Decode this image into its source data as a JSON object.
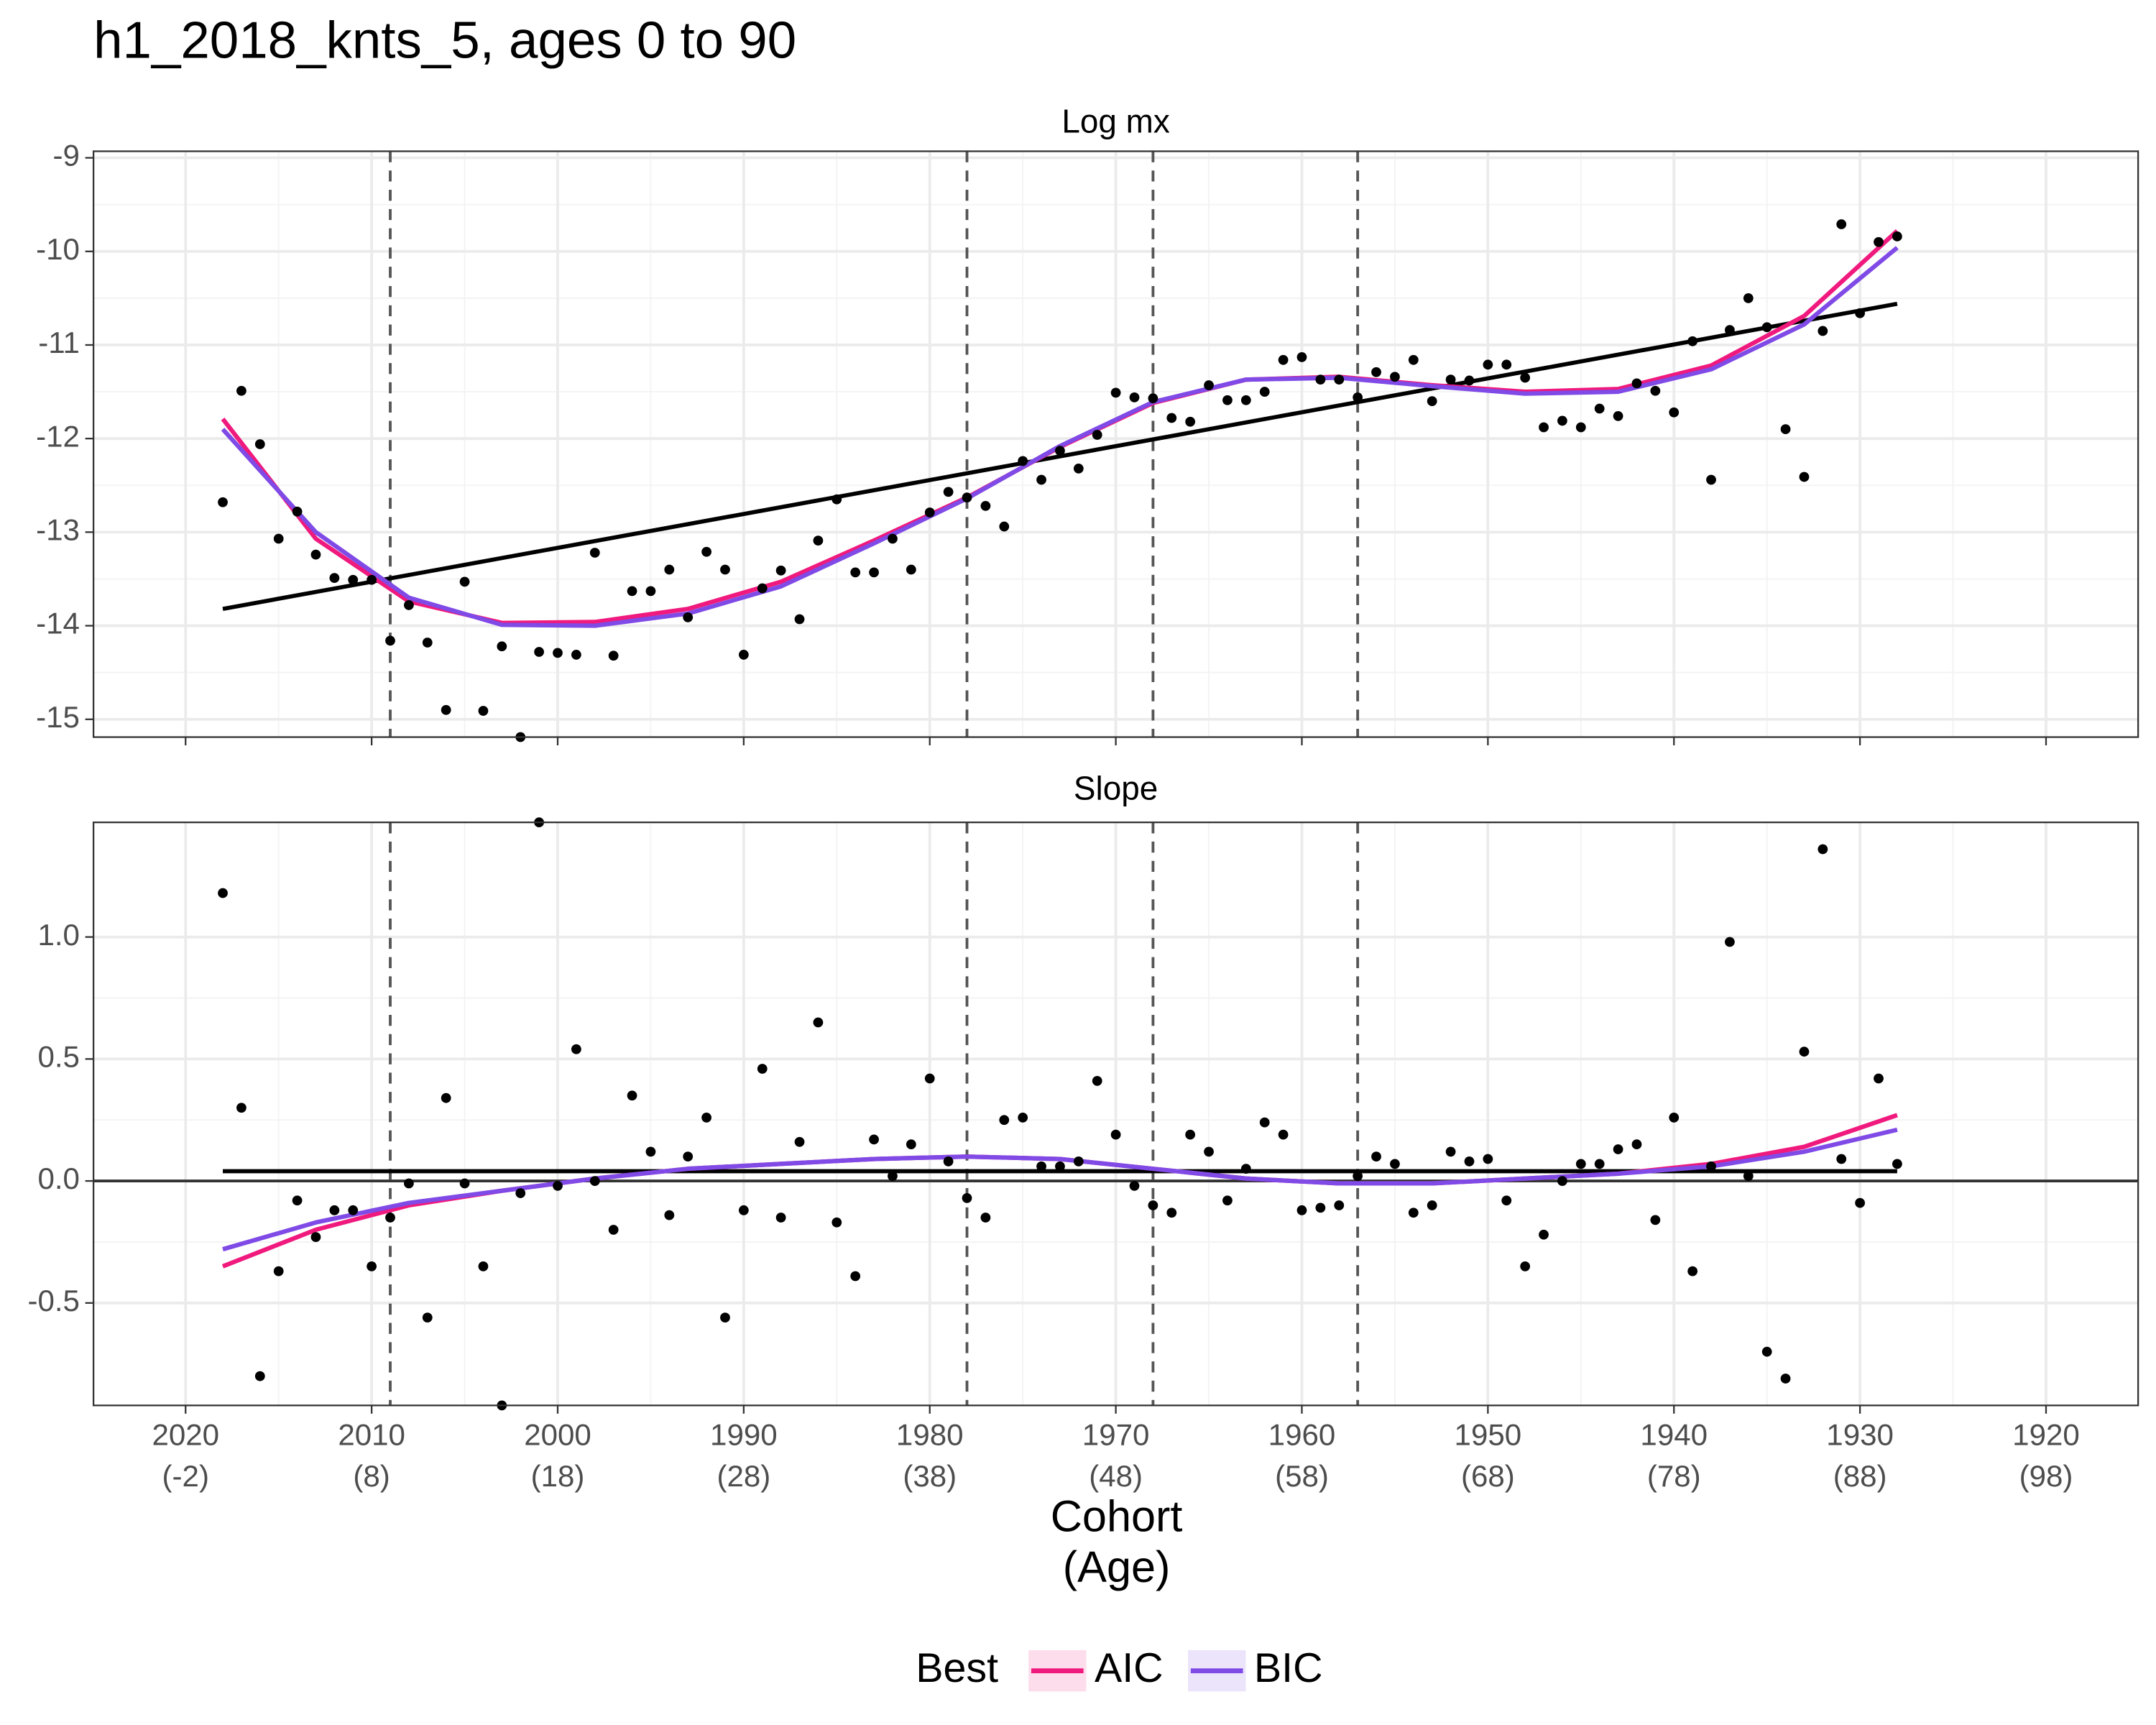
{
  "title": "h1_2018_knts_5, ages 0 to 90",
  "x_axis": {
    "title": [
      "Cohort",
      "(Age)"
    ],
    "xlim": [
      2024.95,
      1915.05
    ],
    "xticks": [
      {
        "value": 2020,
        "label": [
          "2020",
          "(-2)"
        ]
      },
      {
        "value": 2010,
        "label": [
          "2010",
          "(8)"
        ]
      },
      {
        "value": 2000,
        "label": [
          "2000",
          "(18)"
        ]
      },
      {
        "value": 1990,
        "label": [
          "1990",
          "(28)"
        ]
      },
      {
        "value": 1980,
        "label": [
          "1980",
          "(38)"
        ]
      },
      {
        "value": 1970,
        "label": [
          "1970",
          "(48)"
        ]
      },
      {
        "value": 1960,
        "label": [
          "1960",
          "(58)"
        ]
      },
      {
        "value": 1950,
        "label": [
          "1950",
          "(68)"
        ]
      },
      {
        "value": 1940,
        "label": [
          "1940",
          "(78)"
        ]
      },
      {
        "value": 1930,
        "label": [
          "1930",
          "(88)"
        ]
      },
      {
        "value": 1920,
        "label": [
          "1920",
          "(98)"
        ]
      }
    ]
  },
  "legend_title": "Best",
  "knots": [
    2009,
    1978,
    1968,
    1957
  ],
  "x": [
    2018,
    2017,
    2016,
    2015,
    2014,
    2013,
    2012,
    2011,
    2010,
    2009,
    2008,
    2007,
    2006,
    2005,
    2004,
    2003,
    2002,
    2001,
    2000,
    1999,
    1998,
    1997,
    1996,
    1995,
    1994,
    1993,
    1992,
    1991,
    1990,
    1989,
    1988,
    1987,
    1986,
    1985,
    1984,
    1983,
    1982,
    1981,
    1980,
    1979,
    1978,
    1977,
    1976,
    1975,
    1974,
    1973,
    1972,
    1971,
    1970,
    1969,
    1968,
    1967,
    1966,
    1965,
    1964,
    1963,
    1962,
    1961,
    1960,
    1959,
    1958,
    1957,
    1956,
    1955,
    1954,
    1953,
    1952,
    1951,
    1950,
    1949,
    1948,
    1947,
    1946,
    1945,
    1944,
    1943,
    1942,
    1941,
    1940,
    1939,
    1938,
    1937,
    1936,
    1935,
    1934,
    1933,
    1932,
    1931,
    1930,
    1929,
    1928
  ],
  "fit_x": [
    2018,
    2013,
    2008,
    2003,
    1998,
    1993,
    1988,
    1983,
    1978,
    1973,
    1968,
    1963,
    1958,
    1953,
    1948,
    1943,
    1938,
    1933,
    1928
  ],
  "chart_data": [
    {
      "type": "scatter",
      "title": "Log mx",
      "ylim": [
        -15.19,
        -8.93
      ],
      "yticks": [
        -9,
        -10,
        -11,
        -12,
        -13,
        -14,
        -15
      ],
      "grid": true,
      "points": {
        "color": "#000000",
        "values": [
          -12.68,
          -11.49,
          -12.06,
          -13.07,
          -12.78,
          -13.24,
          -13.49,
          -13.51,
          -13.51,
          -14.16,
          -13.78,
          -14.18,
          -14.9,
          -13.53,
          -14.91,
          -14.22,
          -15.19,
          -14.28,
          -14.29,
          -14.31,
          -13.22,
          -14.32,
          -13.63,
          -13.63,
          -13.4,
          -13.91,
          -13.21,
          -13.4,
          -14.31,
          -13.6,
          -13.41,
          -13.93,
          -13.09,
          -12.65,
          -13.43,
          -13.43,
          -13.07,
          -13.4,
          -12.79,
          -12.57,
          -12.63,
          -12.72,
          -12.94,
          -12.24,
          -12.44,
          -12.13,
          -12.32,
          -11.96,
          -11.51,
          -11.56,
          -11.57,
          -11.78,
          -11.82,
          -11.43,
          -11.59,
          -11.59,
          -11.5,
          -11.16,
          -11.13,
          -11.37,
          -11.37,
          -11.56,
          -11.29,
          -11.34,
          -11.16,
          -11.6,
          -11.37,
          -11.38,
          -11.21,
          -11.21,
          -11.35,
          -11.88,
          -11.81,
          -11.88,
          -11.68,
          -11.76,
          -11.41,
          -11.49,
          -11.72,
          -10.96,
          -12.44,
          -10.84,
          -10.5,
          -10.81,
          -11.9,
          -12.41,
          -10.85,
          -9.71,
          -10.66,
          -9.9,
          -9.84
        ]
      },
      "linear": {
        "color": "#000000",
        "x": [
          2018,
          1928
        ],
        "values": [
          -13.82,
          -10.56
        ]
      },
      "series": [
        {
          "name": "AIC",
          "color": "#f0197d",
          "values": [
            -11.79,
            -13.07,
            -13.74,
            -13.97,
            -13.96,
            -13.82,
            -13.53,
            -13.09,
            -12.63,
            -12.09,
            -11.62,
            -11.37,
            -11.34,
            -11.43,
            -11.5,
            -11.47,
            -11.22,
            -10.69,
            -9.78
          ]
        },
        {
          "name": "BIC",
          "color": "#7f4ae6",
          "values": [
            -11.9,
            -13.0,
            -13.7,
            -13.99,
            -14.0,
            -13.87,
            -13.58,
            -13.12,
            -12.64,
            -12.08,
            -11.61,
            -11.37,
            -11.35,
            -11.44,
            -11.52,
            -11.5,
            -11.26,
            -10.78,
            -9.96
          ]
        }
      ]
    },
    {
      "type": "scatter",
      "title": "Slope",
      "ylim": [
        -0.92,
        1.47
      ],
      "yticks": [
        {
          "value": 1,
          "label": "1.0"
        },
        0.5,
        {
          "value": 0,
          "label": "0.0"
        },
        -0.5
      ],
      "grid": true,
      "hline": 0,
      "points": {
        "color": "#000000",
        "values": [
          1.18,
          0.3,
          -0.8,
          -0.37,
          -0.08,
          -0.23,
          -0.12,
          -0.12,
          -0.35,
          -0.15,
          -0.01,
          -0.56,
          0.34,
          -0.01,
          -0.35,
          -0.92,
          -0.05,
          1.47,
          -0.02,
          0.54,
          0,
          -0.2,
          0.35,
          0.12,
          -0.14,
          0.1,
          0.26,
          -0.56,
          -0.12,
          0.46,
          -0.15,
          0.16,
          0.65,
          -0.17,
          -0.39,
          0.17,
          0.02,
          0.15,
          0.42,
          0.08,
          -0.07,
          -0.15,
          0.25,
          0.26,
          0.06,
          0.06,
          0.08,
          0.41,
          0.19,
          -0.02,
          -0.1,
          -0.13,
          0.19,
          0.12,
          -0.08,
          0.05,
          0.24,
          0.19,
          -0.12,
          -0.11,
          -0.1,
          0.02,
          0.1,
          0.07,
          -0.13,
          -0.1,
          0.12,
          0.08,
          0.09,
          -0.08,
          -0.35,
          -0.22,
          0,
          0.07,
          0.07,
          0.13,
          0.15,
          -0.16,
          0.26,
          -0.37,
          0.06,
          0.98,
          0.02,
          -0.7,
          -0.81,
          0.53,
          1.36,
          0.09,
          -0.09,
          0.42,
          0.07
        ]
      },
      "linear": {
        "color": "#000000",
        "x": [
          2018,
          1928
        ],
        "values": [
          0.04,
          0.04
        ]
      },
      "series": [
        {
          "color": "#f0197d",
          "values": [
            -0.35,
            -0.2,
            -0.1,
            -0.04,
            0.01,
            0.05,
            0.07,
            0.09,
            0.1,
            0.09,
            0.05,
            0.01,
            -0.01,
            -0.01,
            0.01,
            0.03,
            0.07,
            0.14,
            0.27
          ]
        },
        {
          "color": "#7f4ae6",
          "values": [
            -0.28,
            -0.17,
            -0.09,
            -0.04,
            0.01,
            0.05,
            0.07,
            0.09,
            0.1,
            0.09,
            0.05,
            0.01,
            -0.01,
            -0.01,
            0.01,
            0.03,
            0.06,
            0.12,
            0.21
          ]
        }
      ]
    }
  ]
}
